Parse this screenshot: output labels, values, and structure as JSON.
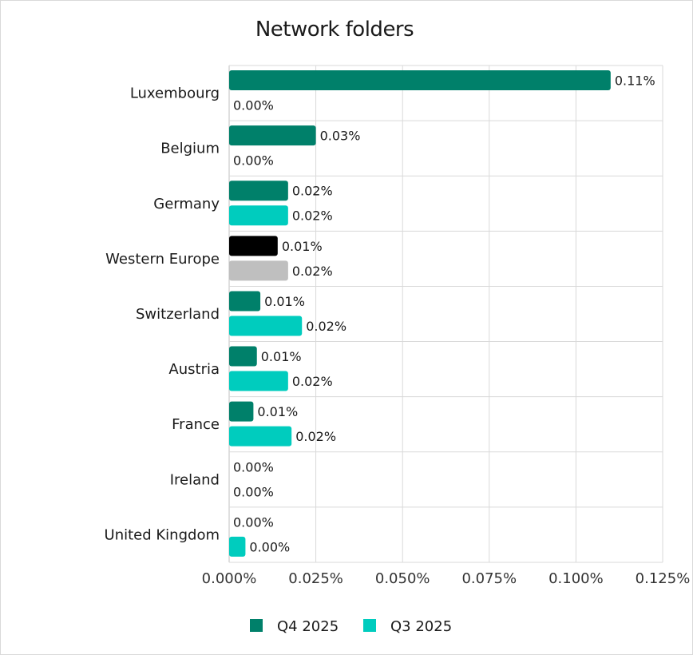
{
  "chart_data": {
    "type": "bar",
    "orientation": "horizontal",
    "title": "Network folders",
    "categories": [
      "Luxembourg",
      "Belgium",
      "Germany",
      "Western Europe",
      "Switzerland",
      "Austria",
      "France",
      "Ireland",
      "United Kingdom"
    ],
    "series": [
      {
        "name": "Q4 2025",
        "color": "#00806a",
        "values": [
          0.11,
          0.025,
          0.017,
          0.014,
          0.009,
          0.008,
          0.007,
          0.0,
          0.0
        ],
        "labels": [
          "0.11%",
          "0.03%",
          "0.02%",
          "0.01%",
          "0.01%",
          "0.01%",
          "0.01%",
          "0.00%",
          "0.00%"
        ]
      },
      {
        "name": "Q3 2025",
        "color": "#00ccbe",
        "values": [
          0.0,
          0.0,
          0.017,
          0.017,
          0.021,
          0.017,
          0.018,
          0.0,
          0.0047
        ],
        "labels": [
          "0.00%",
          "0.00%",
          "0.02%",
          "0.02%",
          "0.02%",
          "0.02%",
          "0.02%",
          "0.00%",
          "0.00%"
        ]
      }
    ],
    "highlight": {
      "category": "Western Europe",
      "colors": {
        "Q4 2025": "#000000",
        "Q3 2025": "#bfbfbf"
      }
    },
    "xlim": [
      0,
      0.125
    ],
    "xticks": [
      0,
      0.025,
      0.05,
      0.075,
      0.1,
      0.125
    ],
    "xtick_labels": [
      "0.000%",
      "0.025%",
      "0.050%",
      "0.075%",
      "0.100%",
      "0.125%"
    ],
    "grid": true,
    "legend_position": "bottom"
  }
}
